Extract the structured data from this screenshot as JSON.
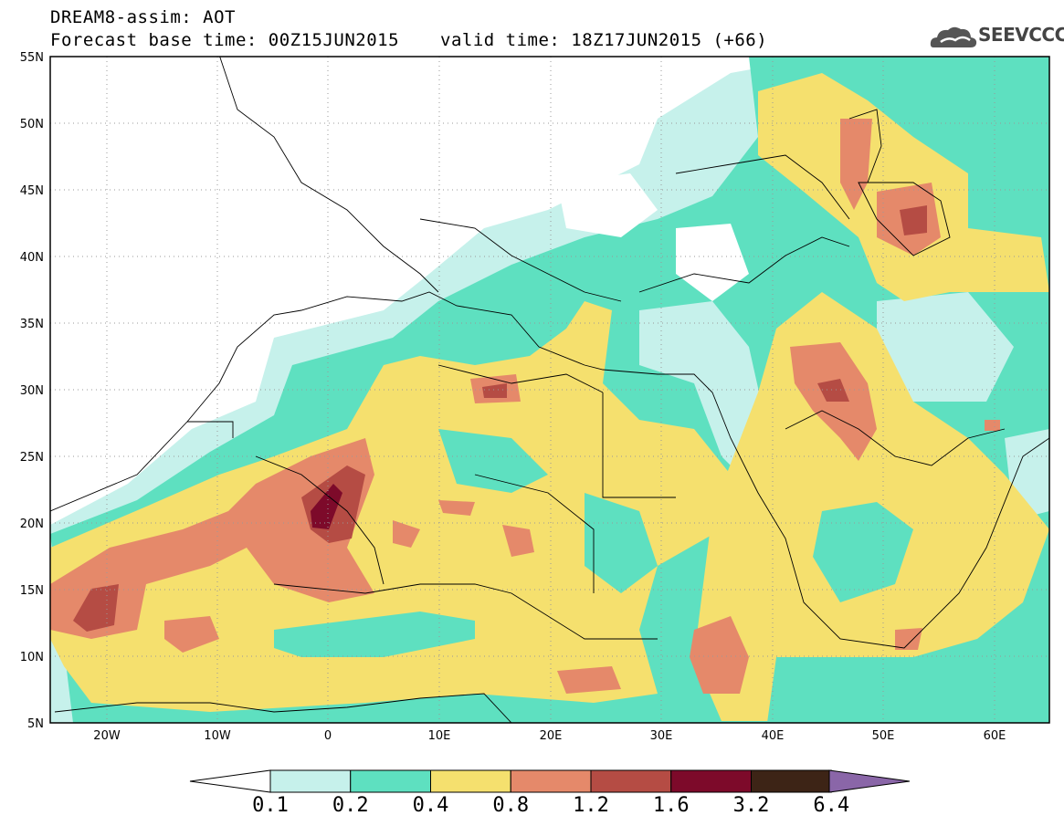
{
  "title": {
    "line1": "DREAM8-assim: AOT",
    "base_time": "Forecast base time: 00Z15JUN2015",
    "valid_time": "valid time: 18Z17JUN2015 (+66)"
  },
  "logo": {
    "text": "SEEVCCC",
    "icon": "cloud-icon"
  },
  "axes": {
    "lat_labels": [
      "55N",
      "50N",
      "45N",
      "40N",
      "35N",
      "30N",
      "25N",
      "20N",
      "15N",
      "10N",
      "5N"
    ],
    "lon_labels": [
      "20W",
      "10W",
      "0",
      "10E",
      "20E",
      "30E",
      "40E",
      "50E",
      "60E"
    ],
    "lon_range": [
      -25,
      65
    ],
    "lat_range": [
      5,
      55
    ]
  },
  "colorbar": {
    "labels": [
      "0.1",
      "0.2",
      "0.4",
      "0.8",
      "1.2",
      "1.6",
      "3.2",
      "6.4"
    ],
    "colors": [
      "#ffffff",
      "#c6f1eb",
      "#5ee0c0",
      "#f5e06e",
      "#e5896a",
      "#b54c44",
      "#7d0a2a",
      "#3d2416",
      "#8a66a8"
    ]
  }
}
